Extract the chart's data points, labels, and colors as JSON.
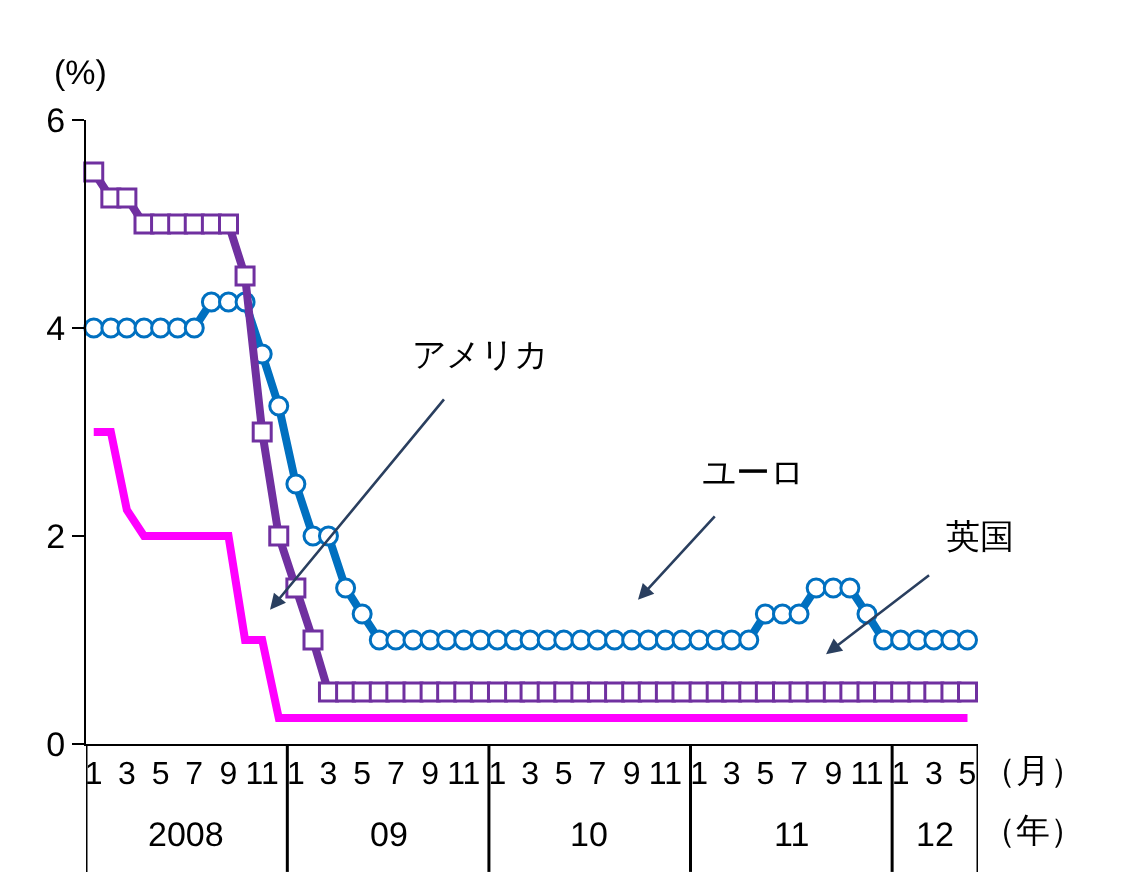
{
  "chart_data": {
    "type": "line",
    "ylabel": "(%)",
    "xlabel": "（月）",
    "x": [
      "2008-01",
      "2008-02",
      "2008-03",
      "2008-04",
      "2008-05",
      "2008-06",
      "2008-07",
      "2008-08",
      "2008-09",
      "2008-10",
      "2008-11",
      "2008-12",
      "2009-01",
      "2009-02",
      "2009-03",
      "2009-04",
      "2009-05",
      "2009-06",
      "2009-07",
      "2009-08",
      "2009-09",
      "2009-10",
      "2009-11",
      "2009-12",
      "2010-01",
      "2010-02",
      "2010-03",
      "2010-04",
      "2010-05",
      "2010-06",
      "2010-07",
      "2010-08",
      "2010-09",
      "2010-10",
      "2010-11",
      "2010-12",
      "2011-01",
      "2011-02",
      "2011-03",
      "2011-04",
      "2011-05",
      "2011-06",
      "2011-07",
      "2011-08",
      "2011-09",
      "2011-10",
      "2011-11",
      "2011-12",
      "2012-01",
      "2012-02",
      "2012-03",
      "2012-04",
      "2012-05"
    ],
    "series": [
      {
        "color": "#0070c0",
        "marker": "circle",
        "values": [
          4.0,
          4.0,
          4.0,
          4.0,
          4.0,
          4.0,
          4.0,
          4.25,
          4.25,
          4.25,
          3.75,
          3.25,
          2.5,
          2.0,
          2.0,
          1.5,
          1.25,
          1.0,
          1.0,
          1.0,
          1.0,
          1.0,
          1.0,
          1.0,
          1.0,
          1.0,
          1.0,
          1.0,
          1.0,
          1.0,
          1.0,
          1.0,
          1.0,
          1.0,
          1.0,
          1.0,
          1.0,
          1.0,
          1.0,
          1.0,
          1.25,
          1.25,
          1.25,
          1.5,
          1.5,
          1.5,
          1.25,
          1.0,
          1.0,
          1.0,
          1.0,
          1.0,
          1.0
        ]
      },
      {
        "color": "#7030a0",
        "marker": "square",
        "values": [
          5.5,
          5.25,
          5.25,
          5.0,
          5.0,
          5.0,
          5.0,
          5.0,
          5.0,
          4.5,
          3.0,
          2.0,
          1.5,
          1.0,
          0.5,
          0.5,
          0.5,
          0.5,
          0.5,
          0.5,
          0.5,
          0.5,
          0.5,
          0.5,
          0.5,
          0.5,
          0.5,
          0.5,
          0.5,
          0.5,
          0.5,
          0.5,
          0.5,
          0.5,
          0.5,
          0.5,
          0.5,
          0.5,
          0.5,
          0.5,
          0.5,
          0.5,
          0.5,
          0.5,
          0.5,
          0.5,
          0.5,
          0.5,
          0.5,
          0.5,
          0.5,
          0.5,
          0.5
        ]
      },
      {
        "color": "#ff00ff",
        "marker": "none",
        "values": [
          3.0,
          3.0,
          2.25,
          2.0,
          2.0,
          2.0,
          2.0,
          2.0,
          2.0,
          1.0,
          1.0,
          0.25,
          0.25,
          0.25,
          0.25,
          0.25,
          0.25,
          0.25,
          0.25,
          0.25,
          0.25,
          0.25,
          0.25,
          0.25,
          0.25,
          0.25,
          0.25,
          0.25,
          0.25,
          0.25,
          0.25,
          0.25,
          0.25,
          0.25,
          0.25,
          0.25,
          0.25,
          0.25,
          0.25,
          0.25,
          0.25,
          0.25,
          0.25,
          0.25,
          0.25,
          0.25,
          0.25,
          0.25,
          0.25,
          0.25,
          0.25,
          0.25,
          0.25
        ]
      }
    ],
    "xlim": [
      "2007-12-18",
      "2012-05-20"
    ],
    "xticks": [
      {
        "value": "2008-01",
        "label": "1"
      },
      {
        "value": "2008-03",
        "label": "3"
      },
      {
        "value": "2008-05",
        "label": "5"
      },
      {
        "value": "2008-07",
        "label": "7"
      },
      {
        "value": "2008-09",
        "label": "9"
      },
      {
        "value": "2008-11",
        "label": "11"
      },
      {
        "value": "2009-01",
        "label": "1"
      },
      {
        "value": "2009-03",
        "label": "3"
      },
      {
        "value": "2009-05",
        "label": "5"
      },
      {
        "value": "2009-07",
        "label": "7"
      },
      {
        "value": "2009-09",
        "label": "9"
      },
      {
        "value": "2009-11",
        "label": "11"
      },
      {
        "value": "2010-01",
        "label": "1"
      },
      {
        "value": "2010-03",
        "label": "3"
      },
      {
        "value": "2010-05",
        "label": "5"
      },
      {
        "value": "2010-07",
        "label": "7"
      },
      {
        "value": "2010-09",
        "label": "9"
      },
      {
        "value": "2010-11",
        "label": "11"
      },
      {
        "value": "2011-01",
        "label": "1"
      },
      {
        "value": "2011-03",
        "label": "3"
      },
      {
        "value": "2011-05",
        "label": "5"
      },
      {
        "value": "2011-07",
        "label": "7"
      },
      {
        "value": "2011-09",
        "label": "9"
      },
      {
        "value": "2011-11",
        "label": "11"
      },
      {
        "value": "2012-01",
        "label": "1"
      },
      {
        "value": "2012-03",
        "label": "3"
      },
      {
        "value": "2012-05",
        "label": "5"
      }
    ],
    "ylim": [
      0,
      6
    ],
    "yticks": [
      0,
      2,
      4,
      6
    ],
    "line_style": "solid",
    "annotations": [
      "2008",
      "09",
      "10",
      "11",
      "12",
      "（年）",
      "アメリカ",
      "ユーロ",
      "英国"
    ]
  }
}
